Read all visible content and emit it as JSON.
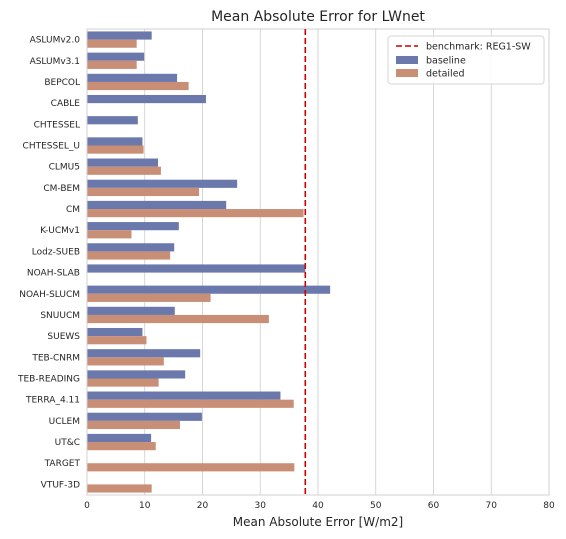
{
  "chart_data": {
    "type": "bar",
    "orientation": "horizontal",
    "title": "Mean Absolute Error for LWnet",
    "xlabel": "Mean Absolute Error [W/m2]",
    "ylabel": "",
    "xlim": [
      0,
      80
    ],
    "xticks": [
      0,
      10,
      20,
      30,
      40,
      50,
      60,
      70,
      80
    ],
    "grid": "vertical",
    "legend_position": "top-right",
    "categories": [
      "ASLUMv2.0",
      "ASLUMv3.1",
      "BEPCOL",
      "CABLE",
      "CHTESSEL",
      "CHTESSEL_U",
      "CLMU5",
      "CM-BEM",
      "CM",
      "K-UCMv1",
      "Lodz-SUEB",
      "NOAH-SLAB",
      "NOAH-SLUCM",
      "SNUUCM",
      "SUEWS",
      "TEB-CNRM",
      "TEB-READING",
      "TERRA_4.11",
      "UCLEM",
      "UT&C",
      "TARGET",
      "VTUF-3D"
    ],
    "series": [
      {
        "name": "baseline",
        "color": "#6a78ab",
        "values": [
          11.2,
          9.9,
          15.6,
          20.6,
          8.8,
          9.6,
          12.3,
          26.0,
          24.1,
          15.9,
          15.1,
          37.8,
          42.1,
          15.2,
          9.6,
          19.6,
          17.0,
          33.5,
          19.9,
          11.1,
          null,
          null
        ]
      },
      {
        "name": "detailed",
        "color": "#c98e76",
        "values": [
          8.6,
          8.6,
          17.6,
          null,
          null,
          9.8,
          12.8,
          19.4,
          37.5,
          7.7,
          14.4,
          null,
          21.4,
          31.5,
          10.3,
          13.3,
          12.4,
          35.8,
          16.1,
          11.9,
          35.9,
          11.2
        ]
      }
    ],
    "benchmark": {
      "name": "benchmark: REG1-SW",
      "value": 37.8,
      "color": "#cc0000"
    }
  }
}
